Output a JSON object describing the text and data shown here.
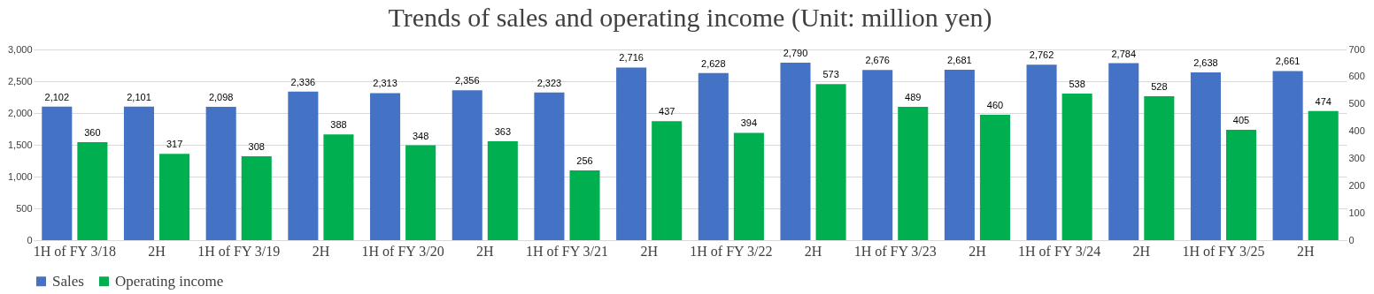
{
  "chart_data": {
    "type": "bar",
    "title": "Trends of sales and operating income (Unit: million yen)",
    "categories": [
      "1H of FY 3/18",
      "2H",
      "1H of FY 3/19",
      "2H",
      "1H of FY 3/20",
      "2H",
      "1H of FY 3/21",
      "2H",
      "1H of FY 3/22",
      "2H",
      "1H of FY 3/23",
      "2H",
      "1H of FY 3/24",
      "2H",
      "1H of FY 3/25",
      "2H"
    ],
    "series": [
      {
        "name": "Sales",
        "color": "#4472c4",
        "values": [
          2102,
          2101,
          2098,
          2336,
          2313,
          2356,
          2323,
          2716,
          2628,
          2790,
          2676,
          2681,
          2762,
          2784,
          2638,
          2661
        ],
        "value_labels": [
          "2,102",
          "2,101",
          "2,098",
          "2,336",
          "2,313",
          "2,356",
          "2,323",
          "2,716",
          "2,628",
          "2,790",
          "2,676",
          "2,681",
          "2,762",
          "2,784",
          "2,638",
          "2,661"
        ]
      },
      {
        "name": "Operating income",
        "color": "#00b050",
        "axis": "y2",
        "values": [
          360,
          317,
          308,
          388,
          348,
          363,
          256,
          437,
          394,
          573,
          489,
          460,
          538,
          528,
          405,
          474
        ]
      }
    ],
    "ylim": [
      0,
      3000
    ],
    "yticks": [
      {
        "value": 0,
        "label": "0"
      },
      {
        "value": 500,
        "label": "500"
      },
      {
        "value": 1000,
        "label": "1,000"
      },
      {
        "value": 1500,
        "label": "1,500"
      },
      {
        "value": 2000,
        "label": "2,000"
      },
      {
        "value": 2500,
        "label": "2,500"
      },
      {
        "value": 3000,
        "label": "3,000"
      }
    ],
    "y2lim": [
      0,
      700
    ],
    "y2ticks": [
      0,
      100,
      200,
      300,
      400,
      500,
      600,
      700
    ],
    "grid": "y",
    "legend": "bottom",
    "data_labels": true
  }
}
